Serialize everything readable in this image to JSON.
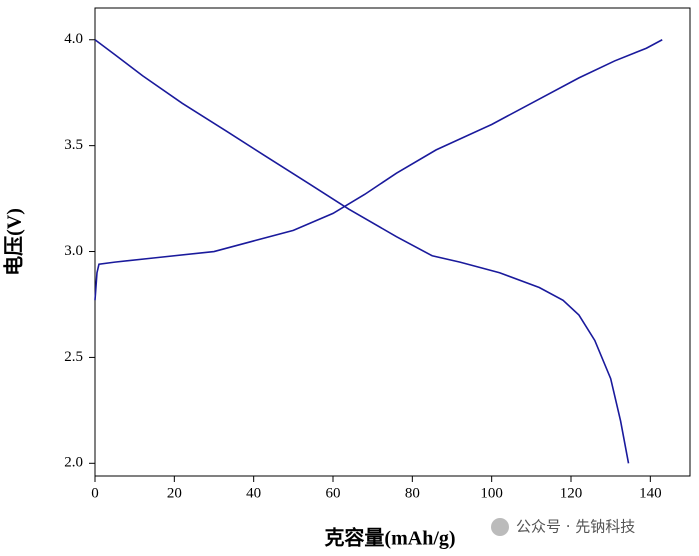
{
  "chart_data": {
    "type": "line",
    "x_label": "克容量(mAh/g)",
    "y_label": "电压(V)",
    "watermark": "公众号 · 先钠科技",
    "xlim": [
      0,
      150
    ],
    "xticks": [
      0,
      20,
      40,
      60,
      80,
      100,
      120,
      140
    ],
    "ylim": [
      1.94,
      4.15
    ],
    "yticks": [
      {
        "value": 2,
        "label": "2.0"
      },
      {
        "value": 2.5,
        "label": "2.5"
      },
      {
        "value": 3,
        "label": "3.0"
      },
      {
        "value": 3.5,
        "label": "3.5"
      },
      {
        "value": 4,
        "label": "4.0"
      }
    ],
    "series": [
      {
        "color": "#1a1a9c",
        "x": [
          0,
          0.5,
          1,
          5,
          15,
          30,
          40,
          50,
          60,
          68,
          76,
          86,
          100,
          112,
          122,
          131,
          139,
          143
        ],
        "values": [
          2.77,
          2.9,
          2.94,
          2.95,
          2.97,
          3.0,
          3.05,
          3.1,
          3.18,
          3.27,
          3.37,
          3.48,
          3.6,
          3.72,
          3.82,
          3.9,
          3.96,
          4.0
        ]
      },
      {
        "color": "#1a1a9c",
        "x": [
          0,
          5,
          12,
          22,
          33,
          43,
          54,
          64,
          76,
          85,
          92,
          102,
          112,
          118,
          122,
          126,
          130,
          132.5,
          134.5
        ],
        "values": [
          4.0,
          3.93,
          3.83,
          3.7,
          3.57,
          3.45,
          3.32,
          3.2,
          3.07,
          2.98,
          2.95,
          2.9,
          2.83,
          2.77,
          2.7,
          2.58,
          2.4,
          2.2,
          2.0
        ]
      }
    ]
  }
}
